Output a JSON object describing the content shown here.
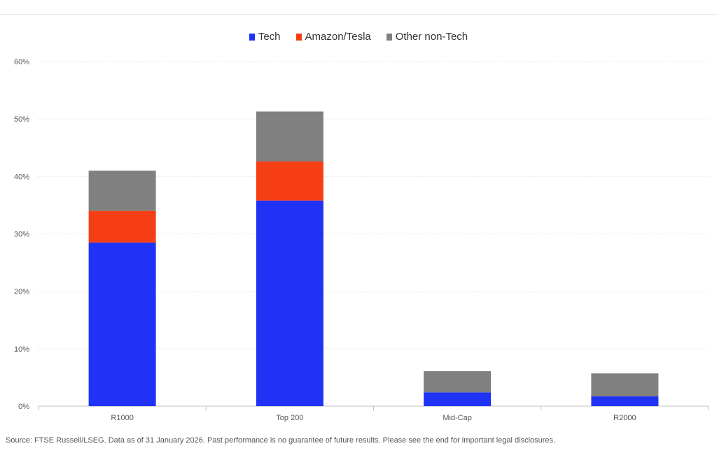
{
  "chart_data": {
    "type": "bar",
    "stacked": true,
    "categories": [
      "R1000",
      "Top 200",
      "Mid-Cap",
      "R2000"
    ],
    "series": [
      {
        "name": "Tech",
        "color": "#1f32f5",
        "values": [
          28.5,
          35.8,
          2.4,
          1.7
        ]
      },
      {
        "name": "Amazon/Tesla",
        "color": "#f63e14",
        "values": [
          5.5,
          6.8,
          0.0,
          0.0
        ]
      },
      {
        "name": "Other non-Tech",
        "color": "#808080",
        "values": [
          7.0,
          8.7,
          3.7,
          4.0
        ]
      }
    ],
    "ylim": [
      0,
      60
    ],
    "yticks": [
      "0%",
      "10%",
      "20%",
      "30%",
      "40%",
      "50%",
      "60%"
    ],
    "grid": true,
    "legend_position": "top-center",
    "title": "",
    "xlabel": "",
    "ylabel": ""
  },
  "footer": {
    "source": "Source: FTSE Russell/LSEG. Data as of 31 January 2026. Past performance is no guarantee of future results. Please see the end for important legal disclosures."
  }
}
